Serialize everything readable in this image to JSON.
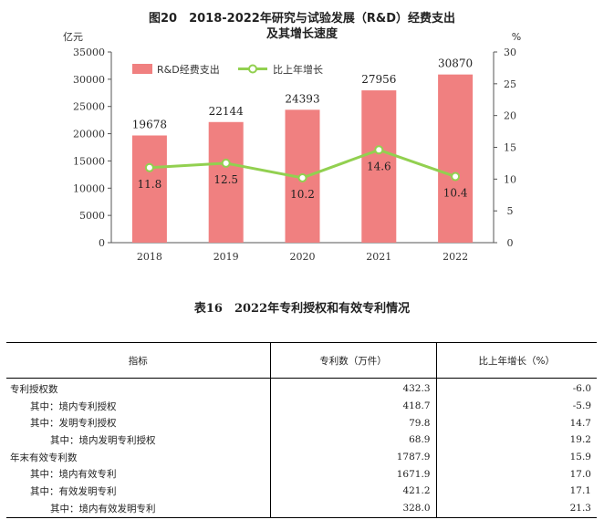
{
  "chart_data": {
    "type": "bar",
    "title_line1": "图20　2018-2022年研究与试验发展（R&D）经费支出",
    "title_line2": "及其增长速度",
    "left_unit": "亿元",
    "right_unit": "%",
    "categories": [
      "2018",
      "2019",
      "2020",
      "2021",
      "2022"
    ],
    "left_ylim": [
      0,
      35000
    ],
    "left_ticks": [
      "0",
      "5000",
      "10000",
      "15000",
      "20000",
      "25000",
      "30000",
      "35000"
    ],
    "right_ylim": [
      0,
      30
    ],
    "right_ticks": [
      "0",
      "5",
      "10",
      "15",
      "20",
      "25",
      "30"
    ],
    "series": [
      {
        "name": "R&D经费支出",
        "kind": "bar",
        "axis": "left",
        "values": [
          19678,
          22144,
          24393,
          27956,
          30870
        ],
        "labels": [
          "19678",
          "22144",
          "24393",
          "27956",
          "30870"
        ]
      },
      {
        "name": "比上年增长",
        "kind": "line",
        "axis": "right",
        "values": [
          11.8,
          12.5,
          10.2,
          14.6,
          10.4
        ],
        "labels": [
          "11.8",
          "12.5",
          "10.2",
          "14.6",
          "10.4"
        ]
      }
    ],
    "legend": "top-left",
    "colors": {
      "bar": "#f08080",
      "line": "#92d050",
      "marker_fill": "#ffffff"
    }
  },
  "table": {
    "title": "表16　2022年专利授权和有效专利情况",
    "headers": [
      "指标",
      "专利数（万件）",
      "比上年增长（%）"
    ],
    "rows": [
      {
        "name": "专利授权数",
        "value": "432.3",
        "growth": "-6.0",
        "indent": 0
      },
      {
        "name": "其中：境内专利授权",
        "value": "418.7",
        "growth": "-5.9",
        "indent": 1
      },
      {
        "name": "其中：发明专利授权",
        "value": "79.8",
        "growth": "14.7",
        "indent": 1
      },
      {
        "name": "其中：境内发明专利授权",
        "value": "68.9",
        "growth": "19.2",
        "indent": 2
      },
      {
        "name": "年末有效专利数",
        "value": "1787.9",
        "growth": "15.9",
        "indent": 0
      },
      {
        "name": "其中：境内有效专利",
        "value": "1671.9",
        "growth": "17.0",
        "indent": 1
      },
      {
        "name": "其中：有效发明专利",
        "value": "421.2",
        "growth": "17.1",
        "indent": 1
      },
      {
        "name": "其中：境内有效发明专利",
        "value": "328.0",
        "growth": "21.3",
        "indent": 2
      }
    ]
  }
}
